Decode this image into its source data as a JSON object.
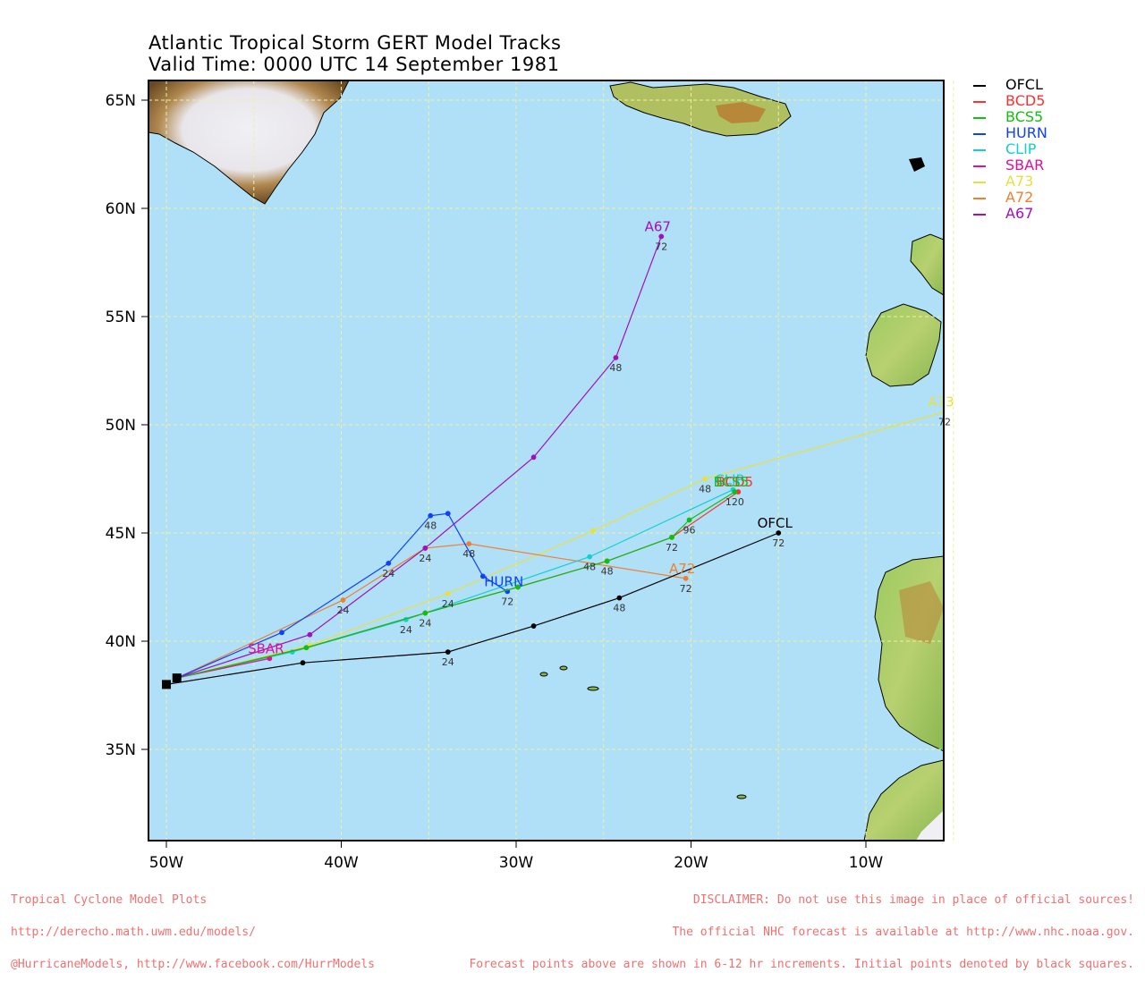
{
  "title": {
    "line1": "Atlantic Tropical Storm GERT Model Tracks",
    "line2": "Valid Time: 0000 UTC 14 September 1981"
  },
  "colors": {
    "ocean": "#b0e0f7",
    "frame": "#000000",
    "grid": "#f0f0a0",
    "footer": "#f07070"
  },
  "axes": {
    "lon_labels": [
      "50W",
      "40W",
      "30W",
      "20W",
      "10W"
    ],
    "lat_labels": [
      "65N",
      "60N",
      "55N",
      "50N",
      "45N",
      "40N",
      "35N"
    ]
  },
  "legend": [
    {
      "name": "OFCL",
      "color": "#000000"
    },
    {
      "name": "BCD5",
      "color": "#ff3030"
    },
    {
      "name": "BCS5",
      "color": "#10c010"
    },
    {
      "name": "HURN",
      "color": "#1040ff"
    },
    {
      "name": "CLIP",
      "color": "#10d0d0"
    },
    {
      "name": "SBAR",
      "color": "#e0109a"
    },
    {
      "name": "A73",
      "color": "#e8e040"
    },
    {
      "name": "A72",
      "color": "#f08030"
    },
    {
      "name": "A67",
      "color": "#a010c0"
    }
  ],
  "tracks": [
    {
      "name": "A73",
      "color": "#e8e040",
      "label_at": "end",
      "points": [
        [
          -49.4,
          38.3
        ],
        [
          -41.8,
          39.8
        ],
        [
          -33.9,
          42.2
        ],
        [
          -25.6,
          45.1
        ],
        [
          -19.2,
          47.5
        ],
        [
          -5.5,
          50.6
        ]
      ],
      "hours": [
        {
          "i": 2,
          "h": "24"
        },
        {
          "i": 4,
          "h": "48"
        },
        {
          "i": 5,
          "h": "72"
        }
      ]
    },
    {
      "name": "A72",
      "color": "#f08030",
      "label_at": "end",
      "points": [
        [
          -49.4,
          38.3
        ],
        [
          -39.9,
          41.9
        ],
        [
          -35.2,
          44.3
        ],
        [
          -32.7,
          44.5
        ],
        [
          -20.3,
          42.9
        ]
      ],
      "hours": [
        {
          "i": 1,
          "h": "24"
        },
        {
          "i": 3,
          "h": "48"
        },
        {
          "i": 4,
          "h": "72"
        }
      ]
    },
    {
      "name": "CLIP",
      "color": "#10d0d0",
      "label_at": "end",
      "points": [
        [
          -49.4,
          38.3
        ],
        [
          -42.8,
          39.5
        ],
        [
          -36.3,
          41.0
        ],
        [
          -25.8,
          43.9
        ],
        [
          -17.6,
          47.0
        ]
      ],
      "hours": [
        {
          "i": 2,
          "h": "24"
        },
        {
          "i": 3,
          "h": "48"
        }
      ]
    },
    {
      "name": "HURN",
      "color": "#1040ff",
      "label_at": "end",
      "points": [
        [
          -49.4,
          38.3
        ],
        [
          -43.4,
          40.4
        ],
        [
          -37.3,
          43.6
        ],
        [
          -34.9,
          45.8
        ],
        [
          -33.9,
          45.9
        ],
        [
          -31.9,
          43.0
        ],
        [
          -30.5,
          42.3
        ]
      ],
      "hours": [
        {
          "i": 2,
          "h": "24"
        },
        {
          "i": 3,
          "h": "48"
        },
        {
          "i": 6,
          "h": "72"
        }
      ]
    },
    {
      "name": "SBAR",
      "color": "#e0109a",
      "label_at": "end",
      "points": [
        [
          -49.4,
          38.3
        ],
        [
          -44.1,
          39.2
        ]
      ],
      "hours": []
    },
    {
      "name": "BCD5",
      "color": "#ff3030",
      "label_at": "end",
      "points": [
        [
          -49.4,
          38.3
        ],
        [
          -42.0,
          39.7
        ],
        [
          -35.2,
          41.3
        ],
        [
          -29.9,
          42.5
        ],
        [
          -24.8,
          43.7
        ],
        [
          -21.1,
          44.8
        ],
        [
          -17.3,
          46.9
        ]
      ],
      "hours": []
    },
    {
      "name": "BCS5",
      "color": "#10c010",
      "label_at": "end",
      "points": [
        [
          -49.4,
          38.3
        ],
        [
          -42.0,
          39.7
        ],
        [
          -35.2,
          41.3
        ],
        [
          -29.9,
          42.5
        ],
        [
          -24.8,
          43.7
        ],
        [
          -21.1,
          44.8
        ],
        [
          -20.1,
          45.6
        ],
        [
          -17.5,
          46.9
        ]
      ],
      "hours": [
        {
          "i": 2,
          "h": "24"
        },
        {
          "i": 4,
          "h": "48"
        },
        {
          "i": 5,
          "h": "72"
        },
        {
          "i": 6,
          "h": "96"
        },
        {
          "i": 7,
          "h": "120"
        }
      ]
    },
    {
      "name": "A67",
      "color": "#a010c0",
      "label_at": "end",
      "points": [
        [
          -49.4,
          38.3
        ],
        [
          -41.8,
          40.3
        ],
        [
          -35.2,
          44.3
        ],
        [
          -29.0,
          48.5
        ],
        [
          -24.3,
          53.1
        ],
        [
          -21.7,
          58.7
        ]
      ],
      "hours": [
        {
          "i": 2,
          "h": "24"
        },
        {
          "i": 4,
          "h": "48"
        },
        {
          "i": 5,
          "h": "72"
        }
      ]
    },
    {
      "name": "OFCL",
      "color": "#000000",
      "label_at": "end",
      "points": [
        [
          -50.0,
          38.0
        ],
        [
          -42.2,
          39.0
        ],
        [
          -33.9,
          39.5
        ],
        [
          -29.0,
          40.7
        ],
        [
          -24.1,
          42.0
        ],
        [
          -15.0,
          45.0
        ]
      ],
      "hours": [
        {
          "i": 2,
          "h": "24"
        },
        {
          "i": 4,
          "h": "48"
        },
        {
          "i": 5,
          "h": "72"
        }
      ]
    }
  ],
  "initial_points": [
    [
      -50.0,
      38.0
    ],
    [
      -49.4,
      38.3
    ]
  ],
  "footer": {
    "left": [
      "Tropical Cyclone Model Plots",
      "http://derecho.math.uwm.edu/models/",
      "@HurricaneModels, http://www.facebook.com/HurrModels"
    ],
    "right": [
      "DISCLAIMER: Do not use this image in place of official sources!",
      "The official NHC forecast is available at http://www.nhc.noaa.gov.",
      "Forecast points above are shown in 6-12 hr increments. Initial points denoted by black squares."
    ]
  }
}
